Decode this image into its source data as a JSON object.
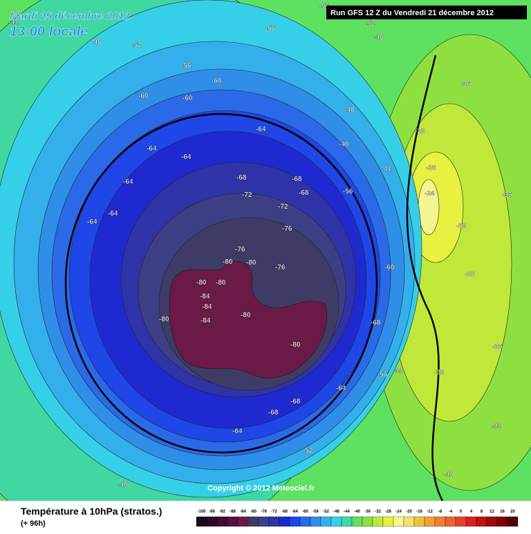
{
  "header": {
    "date": "Mardi 25 décembre 2012",
    "time": "13:00 locale",
    "run": "Run GFS 12 Z du Vendredi 21 décembre 2012"
  },
  "copyright": "Copyright © 2012 Meteociel.fr",
  "footer": {
    "title": "Température à 10hPa (stratos.)",
    "lead": "(+ 96h)"
  },
  "legend": {
    "values": [
      -100,
      -96,
      -92,
      -88,
      -84,
      -80,
      -76,
      -72,
      -68,
      -64,
      -60,
      -56,
      -52,
      -48,
      -44,
      -40,
      -36,
      -32,
      -28,
      -24,
      -20,
      -16,
      -12,
      -8,
      -4,
      0,
      4,
      8,
      12,
      16,
      20
    ],
    "colors": [
      "#1a0a1a",
      "#2d0a28",
      "#400c35",
      "#55113f",
      "#6b1a48",
      "#3e3b66",
      "#3d3f85",
      "#2f33a8",
      "#1e2ad0",
      "#1f46e6",
      "#2a6ae8",
      "#2f8ee8",
      "#33b0ec",
      "#36cfe8",
      "#40d8a0",
      "#5ee060",
      "#8ee040",
      "#bfe83a",
      "#e8f040",
      "#f5f590",
      "#f5e070",
      "#f0c040",
      "#f0a030",
      "#f08030",
      "#f06030",
      "#e84030",
      "#d82020",
      "#c01010",
      "#a00808",
      "#800000",
      "#500000"
    ]
  },
  "map": {
    "labels": [
      -56,
      -52,
      -48,
      -44,
      -48,
      -52,
      -56,
      -56,
      -60,
      -60,
      -60,
      -64,
      -64,
      -64,
      -64,
      -64,
      -64,
      -68,
      -68,
      -68,
      -72,
      -72,
      -76,
      -76,
      -76,
      -80,
      -80,
      -80,
      -80,
      -84,
      -84,
      -84,
      -80,
      -80,
      -80,
      -68,
      -68,
      -68,
      -64,
      -64,
      -60,
      -56,
      -56,
      -52,
      -48,
      -44,
      -44,
      -40,
      -40,
      -36,
      -36,
      -32,
      -32,
      -28,
      -28,
      -24,
      -36,
      -32,
      -44,
      -40
    ]
  }
}
